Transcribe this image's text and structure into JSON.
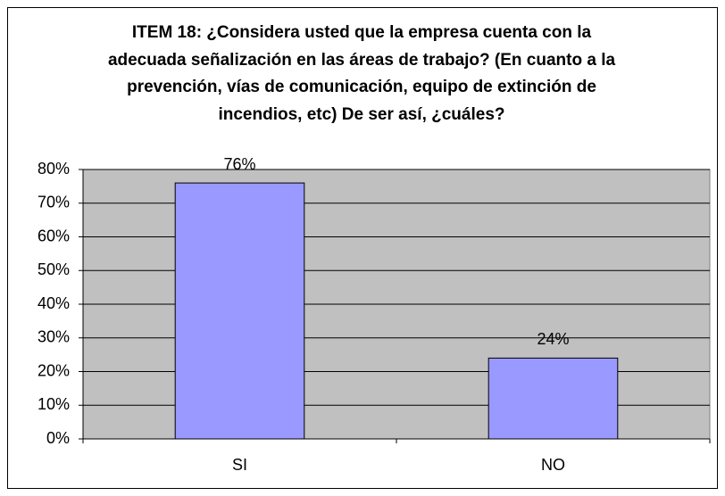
{
  "chart_data": {
    "type": "bar",
    "title": "ITEM 18: ¿Considera usted que la empresa cuenta con la adecuada señalización en las áreas de trabajo? (En cuanto a la prevención, vías de comunicación, equipo de extinción de incendios, etc) De ser así, ¿cuáles?",
    "categories": [
      "SI",
      "NO"
    ],
    "values": [
      76,
      24
    ],
    "value_labels": [
      "76%",
      "24%"
    ],
    "color": "#9999ff",
    "ylim": [
      0,
      80
    ],
    "yticks": [
      {
        "value": 0,
        "label": "0%"
      },
      {
        "value": 10,
        "label": "10%"
      },
      {
        "value": 20,
        "label": "20%"
      },
      {
        "value": 30,
        "label": "30%"
      },
      {
        "value": 40,
        "label": "40%"
      },
      {
        "value": 50,
        "label": "50%"
      },
      {
        "value": 60,
        "label": "60%"
      },
      {
        "value": 70,
        "label": "70%"
      },
      {
        "value": 80,
        "label": "80%"
      }
    ],
    "grid": true
  }
}
